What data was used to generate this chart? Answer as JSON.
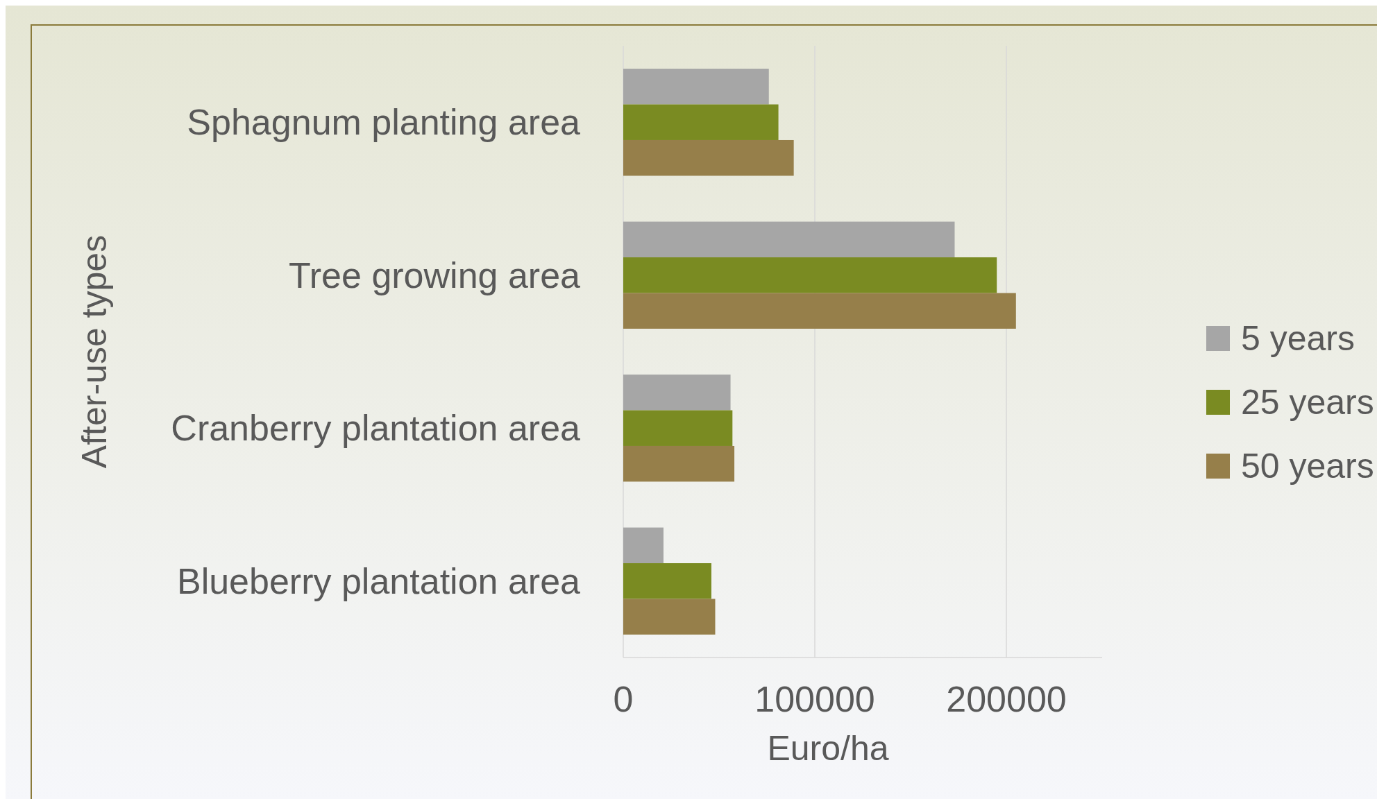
{
  "chart_data": {
    "type": "bar",
    "orientation": "horizontal",
    "xlabel": "Euro/ha",
    "ylabel": "After-use types",
    "categories": [
      "Sphagnum planting area",
      "Tree growing area",
      "Cranberry plantation area",
      "Blueberry plantation area"
    ],
    "series": [
      {
        "name": "5 years",
        "color": "#a6a6a6",
        "values": [
          76000,
          173000,
          56000,
          21000
        ]
      },
      {
        "name": "25 years",
        "color": "#7a8b22",
        "values": [
          81000,
          195000,
          57000,
          46000
        ]
      },
      {
        "name": "50 years",
        "color": "#967f4a",
        "values": [
          89000,
          205000,
          58000,
          48000
        ]
      }
    ],
    "xlim": [
      0,
      250000
    ],
    "xticks": [
      0,
      100000,
      200000
    ],
    "grid": "x",
    "legend": "right"
  }
}
